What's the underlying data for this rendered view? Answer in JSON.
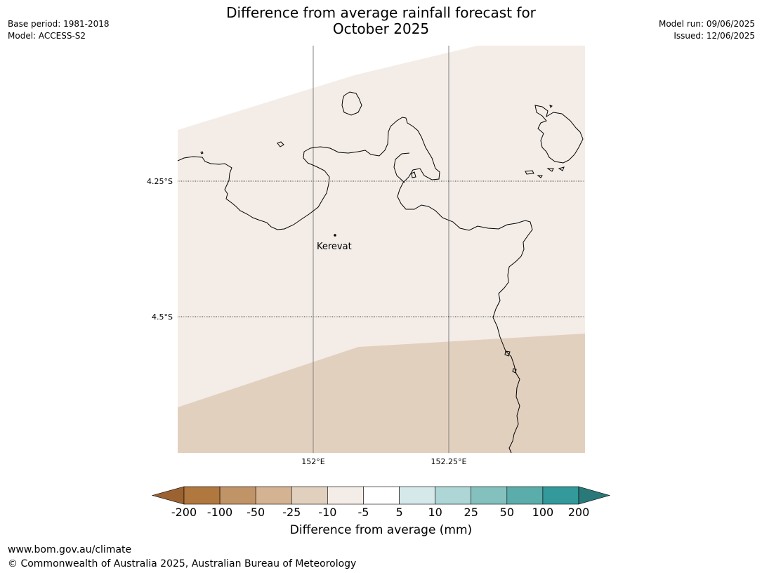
{
  "header": {
    "title_line1": "Difference from average rainfall forecast for",
    "title_line2": "October 2025",
    "base_period": "Base period: 1981-2018",
    "model": "Model: ACCESS-S2",
    "model_run": "Model run: 09/06/2025",
    "issued": "Issued: 12/06/2025"
  },
  "map": {
    "place_label": "Kerevat",
    "lat_labels": [
      "4.25°S",
      "4.5°S"
    ],
    "lon_labels": [
      "152°E",
      "152.25°E"
    ],
    "zones": [
      {
        "category": "-10 to -5",
        "color": "#f4ede7"
      },
      {
        "category": "-25 to -10",
        "color": "#e2d0bf"
      }
    ],
    "coastline_color": "#000000",
    "gridline_color": "#808080"
  },
  "colorbar": {
    "ticks": [
      "-200",
      "-100",
      "-50",
      "-25",
      "-10",
      "-5",
      "5",
      "10",
      "25",
      "50",
      "100",
      "200"
    ],
    "colors": [
      "#9c6232",
      "#b0773e",
      "#c19468",
      "#d4b392",
      "#e2d0bf",
      "#f4ede7",
      "#ffffff",
      "#d6e9ea",
      "#aed6d6",
      "#84c1be",
      "#5aadab",
      "#33999a",
      "#2a7878"
    ],
    "label": "Difference from average (mm)"
  },
  "footer": {
    "url": "www.bom.gov.au/climate",
    "copyright": "© Commonwealth of Australia 2025, Australian Bureau of Meteorology"
  }
}
